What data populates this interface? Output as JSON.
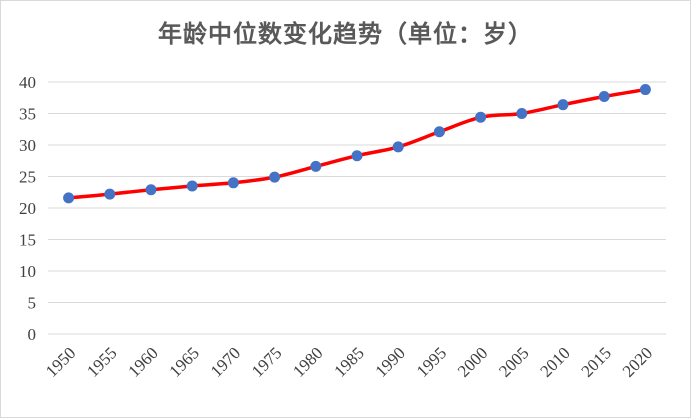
{
  "chart_data": {
    "type": "line",
    "title": "年龄中位数变化趋势（单位：岁）",
    "xlabel": "",
    "ylabel": "",
    "x": [
      "1950",
      "1955",
      "1960",
      "1965",
      "1970",
      "1975",
      "1980",
      "1985",
      "1990",
      "1995",
      "2000",
      "2005",
      "2010",
      "2015",
      "2020"
    ],
    "series": [
      {
        "values": [
          21.6,
          22.2,
          22.9,
          23.5,
          24.0,
          24.9,
          26.6,
          28.3,
          29.7,
          32.1,
          34.4,
          35.0,
          36.4,
          37.7,
          38.8
        ],
        "line_color": "#ff0000",
        "marker_color": "#4472c4"
      }
    ],
    "ylim": [
      0,
      40
    ],
    "yticks": [
      0,
      5,
      10,
      15,
      20,
      25,
      30,
      35,
      40
    ],
    "grid": true,
    "legend": "none"
  }
}
